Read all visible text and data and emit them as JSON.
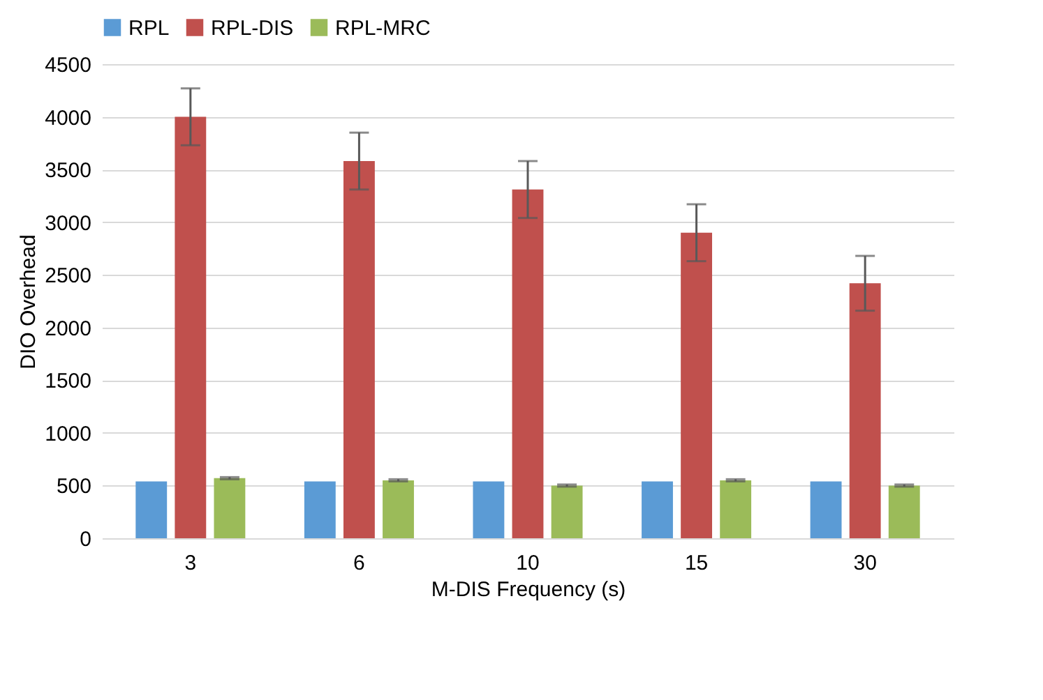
{
  "chart_data": {
    "type": "bar",
    "xlabel": "M-DIS Frequency (s)",
    "ylabel": "DIO Overhead",
    "categories": [
      "3",
      "6",
      "10",
      "15",
      "30"
    ],
    "series": [
      {
        "name": "RPL",
        "color": "#5b9bd5",
        "values": [
          540,
          540,
          540,
          540,
          540
        ]
      },
      {
        "name": "RPL-DIS",
        "color": "#c0504d",
        "values": [
          4000,
          3580,
          3310,
          2900,
          2420
        ],
        "errors": [
          270,
          270,
          270,
          270,
          260
        ]
      },
      {
        "name": "RPL-MRC",
        "color": "#9bbb59",
        "values": [
          570,
          550,
          500,
          550,
          500
        ],
        "errors": [
          10,
          10,
          10,
          10,
          10
        ]
      }
    ],
    "ylim": [
      0,
      4500
    ],
    "yticks": [
      0,
      500,
      1000,
      1500,
      2000,
      2500,
      3000,
      3500,
      4000,
      4500
    ],
    "grid": "y",
    "legend": "top"
  }
}
